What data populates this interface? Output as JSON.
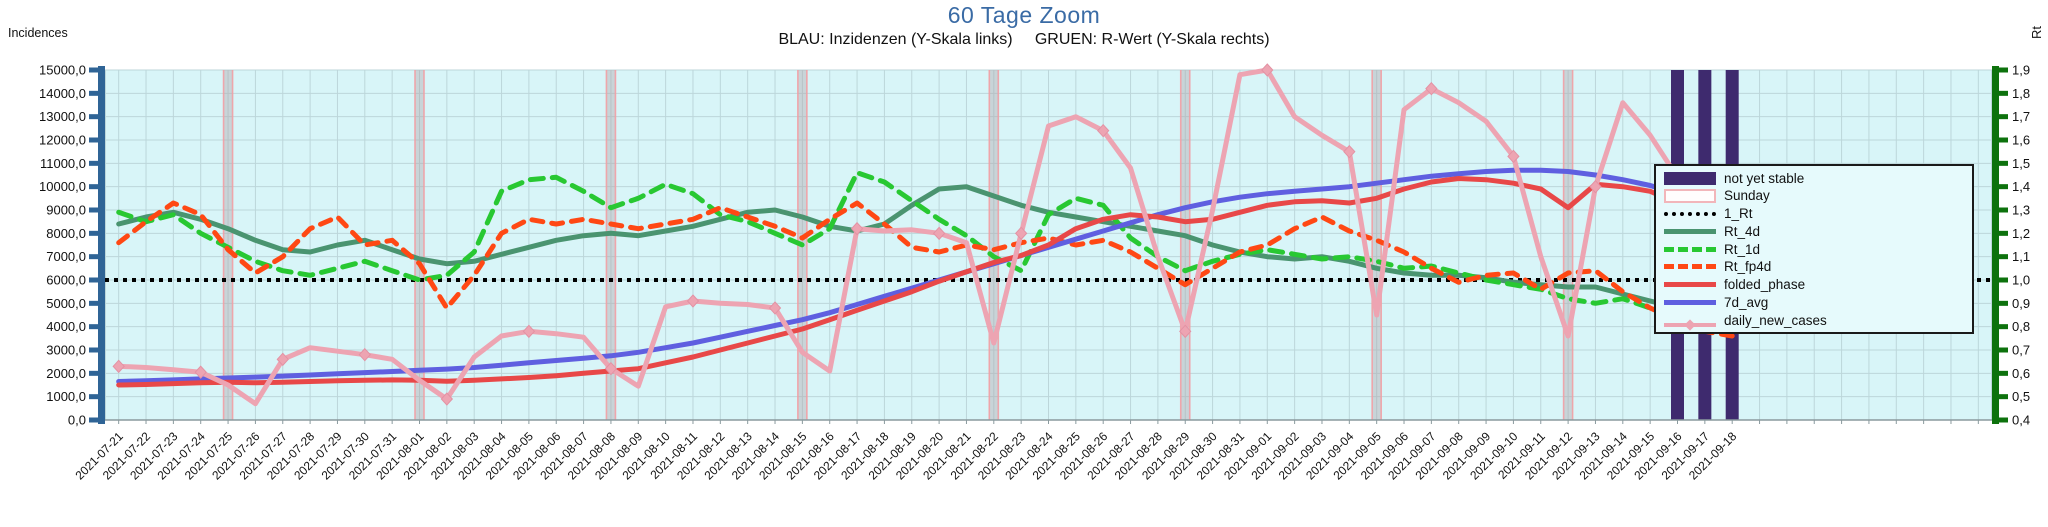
{
  "header": {
    "title": "60 Tage Zoom",
    "subtitle": "BLAU: Inzidenzen (Y-Skala links)     GRUEN: R-Wert (Y-Skala rechts)"
  },
  "left_axis": {
    "title": "Incidences",
    "color": "#2f6496",
    "tick_labels": [
      "15000,0",
      "14000,0",
      "13000,0",
      "12000,0",
      "11000,0",
      "10000,0",
      "9000,0",
      "8000,0",
      "7000,0",
      "6000,0",
      "5000,0",
      "4000,0",
      "3000,0",
      "2000,0",
      "1000,0",
      "0,0"
    ]
  },
  "right_axis": {
    "title": "Rt",
    "color": "#0d720d",
    "tick_labels": [
      "1,9",
      "1,8",
      "1,7",
      "1,6",
      "1,5",
      "1,4",
      "1,3",
      "1,2",
      "1,1",
      "1,0",
      "0,9",
      "0,8",
      "0,7",
      "0,6",
      "0,5",
      "0,4"
    ]
  },
  "legend": {
    "items": [
      {
        "label": "not yet stable",
        "type": "band",
        "color": "#3e2a6e"
      },
      {
        "label": "Sunday",
        "type": "outline",
        "color": "#f2b6ba"
      },
      {
        "label": "1_Rt",
        "type": "dotted",
        "color": "#000000"
      },
      {
        "label": "Rt_4d",
        "type": "solid",
        "color": "#4a9470"
      },
      {
        "label": "Rt_1d",
        "type": "dashed",
        "color": "#28c832"
      },
      {
        "label": "Rt_fp4d",
        "type": "dashed",
        "color": "#ff4814"
      },
      {
        "label": "folded_phase",
        "type": "solid",
        "color": "#e84848"
      },
      {
        "label": "7d_avg",
        "type": "solid",
        "color": "#5f5fe0"
      },
      {
        "label": "daily_new_cases",
        "type": "marker",
        "color": "#eda4b2"
      }
    ]
  },
  "chart_data": {
    "type": "line",
    "title": "60 Tage Zoom",
    "grid": true,
    "legend_position": "right-inside",
    "ylim_left": [
      0,
      15000
    ],
    "ylim_right": [
      0.4,
      1.9
    ],
    "x_extra_slots": 9,
    "dates": [
      "2021-07-21",
      "2021-07-22",
      "2021-07-23",
      "2021-07-24",
      "2021-07-25",
      "2021-07-26",
      "2021-07-27",
      "2021-07-28",
      "2021-07-29",
      "2021-07-30",
      "2021-07-31",
      "2021-08-01",
      "2021-08-02",
      "2021-08-03",
      "2021-08-04",
      "2021-08-05",
      "2021-08-06",
      "2021-08-07",
      "2021-08-08",
      "2021-08-09",
      "2021-08-10",
      "2021-08-11",
      "2021-08-12",
      "2021-08-13",
      "2021-08-14",
      "2021-08-15",
      "2021-08-16",
      "2021-08-17",
      "2021-08-18",
      "2021-08-19",
      "2021-08-20",
      "2021-08-21",
      "2021-08-22",
      "2021-08-23",
      "2021-08-24",
      "2021-08-25",
      "2021-08-26",
      "2021-08-27",
      "2021-08-28",
      "2021-08-29",
      "2021-08-30",
      "2021-08-31",
      "2021-09-01",
      "2021-09-02",
      "2021-09-03",
      "2021-09-04",
      "2021-09-05",
      "2021-09-06",
      "2021-09-07",
      "2021-09-08",
      "2021-09-09",
      "2021-09-10",
      "2021-09-11",
      "2021-09-12",
      "2021-09-13",
      "2021-09-14",
      "2021-09-15",
      "2021-09-16",
      "2021-09-17",
      "2021-09-18"
    ],
    "sunday_dates": [
      "2021-07-25",
      "2021-08-01",
      "2021-08-08",
      "2021-08-15",
      "2021-08-22",
      "2021-08-29",
      "2021-09-05",
      "2021-09-12"
    ],
    "not_yet_stable_dates": [
      "2021-09-16",
      "2021-09-17",
      "2021-09-18"
    ],
    "hline": {
      "name": "1_Rt",
      "axis": "right",
      "value": 1.0,
      "color": "#000000",
      "style": "dotted"
    },
    "series": [
      {
        "name": "Rt_4d",
        "axis": "right",
        "color": "#4a9470",
        "style": "solid",
        "width": 5,
        "values": [
          1.24,
          1.27,
          1.29,
          1.26,
          1.22,
          1.17,
          1.13,
          1.12,
          1.15,
          1.17,
          1.13,
          1.09,
          1.07,
          1.08,
          1.11,
          1.14,
          1.17,
          1.19,
          1.2,
          1.19,
          1.21,
          1.23,
          1.26,
          1.29,
          1.3,
          1.27,
          1.23,
          1.21,
          1.24,
          1.32,
          1.39,
          1.4,
          1.36,
          1.32,
          1.29,
          1.27,
          1.25,
          1.23,
          1.21,
          1.19,
          1.15,
          1.12,
          1.1,
          1.09,
          1.1,
          1.08,
          1.05,
          1.03,
          1.02,
          1.02,
          1.01,
          0.99,
          0.98,
          0.97,
          0.97,
          0.94,
          0.91,
          0.88,
          0.86,
          0.85
        ]
      },
      {
        "name": "Rt_1d",
        "axis": "right",
        "color": "#28c832",
        "style": "dashed",
        "width": 5,
        "values": [
          1.29,
          1.25,
          1.28,
          1.2,
          1.14,
          1.08,
          1.04,
          1.02,
          1.05,
          1.08,
          1.04,
          1.0,
          1.02,
          1.12,
          1.38,
          1.43,
          1.44,
          1.38,
          1.31,
          1.35,
          1.41,
          1.37,
          1.28,
          1.25,
          1.2,
          1.15,
          1.22,
          1.46,
          1.42,
          1.34,
          1.26,
          1.19,
          1.1,
          1.04,
          1.28,
          1.35,
          1.32,
          1.18,
          1.1,
          1.04,
          1.08,
          1.11,
          1.13,
          1.11,
          1.09,
          1.1,
          1.08,
          1.05,
          1.06,
          1.03,
          1.0,
          0.98,
          0.96,
          0.92,
          0.9,
          0.92,
          0.88,
          0.85,
          0.83,
          0.84
        ]
      },
      {
        "name": "Rt_fp4d",
        "axis": "right",
        "color": "#ff4814",
        "style": "dashed",
        "width": 5,
        "values": [
          1.16,
          1.25,
          1.33,
          1.28,
          1.13,
          1.03,
          1.1,
          1.22,
          1.27,
          1.15,
          1.17,
          1.07,
          0.88,
          1.02,
          1.2,
          1.26,
          1.24,
          1.26,
          1.24,
          1.22,
          1.24,
          1.26,
          1.31,
          1.27,
          1.23,
          1.18,
          1.26,
          1.33,
          1.24,
          1.14,
          1.12,
          1.15,
          1.13,
          1.16,
          1.18,
          1.15,
          1.17,
          1.12,
          1.05,
          0.98,
          1.05,
          1.12,
          1.15,
          1.22,
          1.27,
          1.21,
          1.17,
          1.12,
          1.05,
          0.99,
          1.02,
          1.03,
          0.96,
          1.03,
          1.04,
          0.95,
          0.88,
          0.83,
          0.78,
          0.76
        ]
      },
      {
        "name": "7d_avg",
        "axis": "left",
        "color": "#5f5fe0",
        "style": "solid",
        "width": 5,
        "values": [
          1650,
          1680,
          1720,
          1760,
          1800,
          1840,
          1880,
          1930,
          1980,
          2030,
          2080,
          2130,
          2180,
          2250,
          2350,
          2450,
          2550,
          2650,
          2750,
          2900,
          3100,
          3300,
          3550,
          3800,
          4050,
          4300,
          4600,
          4950,
          5300,
          5650,
          6000,
          6350,
          6700,
          7050,
          7400,
          7750,
          8100,
          8450,
          8800,
          9100,
          9350,
          9550,
          9700,
          9800,
          9900,
          10000,
          10150,
          10300,
          10450,
          10550,
          10650,
          10700,
          10700,
          10650,
          10500,
          10300,
          10050,
          9700,
          9100,
          8450
        ]
      },
      {
        "name": "folded_phase",
        "axis": "left",
        "color": "#e84848",
        "style": "solid",
        "width": 5,
        "values": [
          1500,
          1520,
          1560,
          1600,
          1620,
          1600,
          1620,
          1650,
          1680,
          1700,
          1720,
          1700,
          1660,
          1700,
          1760,
          1820,
          1900,
          2000,
          2100,
          2200,
          2450,
          2700,
          3000,
          3300,
          3600,
          3900,
          4300,
          4700,
          5100,
          5500,
          5950,
          6350,
          6750,
          7050,
          7500,
          8200,
          8600,
          8800,
          8700,
          8500,
          8600,
          8900,
          9200,
          9350,
          9400,
          9300,
          9500,
          9900,
          10200,
          10350,
          10300,
          10150,
          9900,
          9100,
          10100,
          10000,
          9800,
          9300,
          8300,
          6900
        ]
      },
      {
        "name": "daily_new_cases",
        "axis": "left",
        "color": "#eda4b2",
        "style": "solid",
        "width": 5,
        "markers": true,
        "values": [
          2300,
          2250,
          2150,
          2050,
          1500,
          700,
          2600,
          3100,
          2950,
          2800,
          2600,
          1700,
          900,
          2700,
          3600,
          3800,
          3700,
          3550,
          2200,
          1450,
          4850,
          5100,
          5000,
          4950,
          4800,
          2900,
          2100,
          8200,
          8100,
          8150,
          8000,
          7600,
          3300,
          8000,
          12600,
          13000,
          12400,
          10800,
          7000,
          3800,
          9000,
          14800,
          15000,
          13000,
          12200,
          11500,
          4500,
          13300,
          14200,
          13600,
          12800,
          11300,
          7000,
          3600,
          10000,
          13600,
          12200,
          10400,
          8100,
          5300
        ]
      }
    ]
  }
}
